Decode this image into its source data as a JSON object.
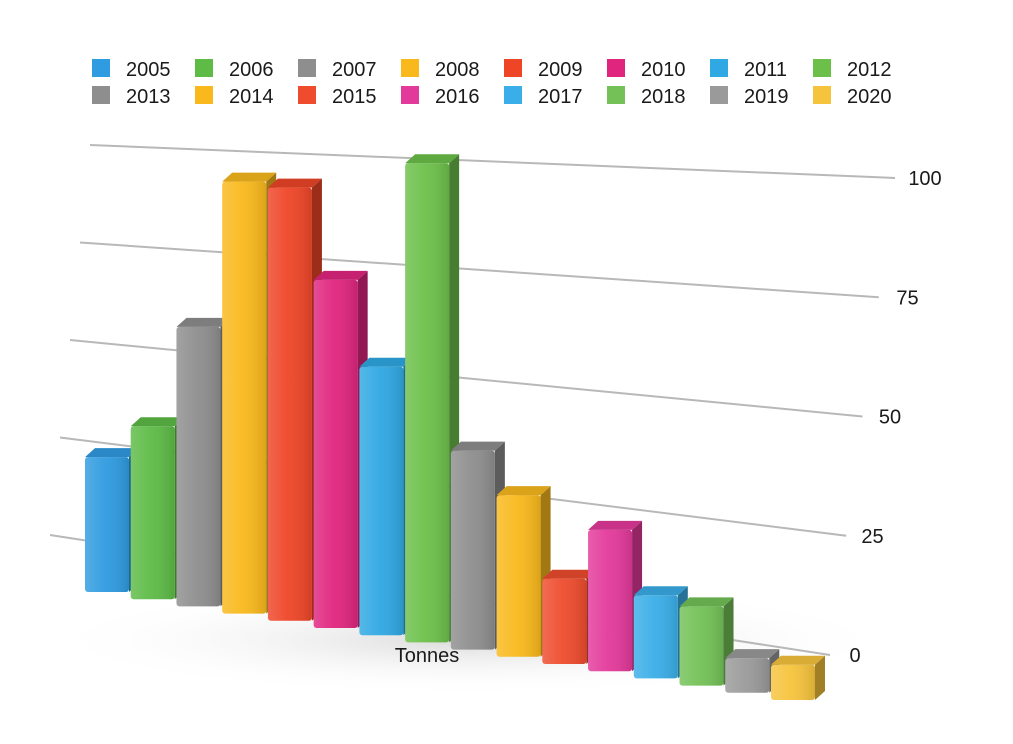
{
  "chart_data": {
    "type": "bar",
    "categories": [
      "2005",
      "2006",
      "2007",
      "2008",
      "2009",
      "2010",
      "2011",
      "2012",
      "2013",
      "2014",
      "2015",
      "2016",
      "2017",
      "2018",
      "2019",
      "2020"
    ],
    "values": [
      32,
      40,
      63,
      95,
      93,
      73,
      55,
      96,
      39,
      31,
      16,
      26,
      15,
      14,
      6,
      6
    ],
    "xlabel": "Tonnes",
    "ylabel": "",
    "ylim": [
      0,
      100
    ],
    "yticks": [
      0,
      25,
      50,
      75,
      100
    ],
    "grid": true,
    "legend": "top",
    "colors": [
      "#2f9be0",
      "#5dbb46",
      "#8e8e8e",
      "#f9b91c",
      "#ee4527",
      "#e0257f",
      "#2fa8e3",
      "#6cc04a",
      "#8e8e8e",
      "#f9b91c",
      "#ee4c2d",
      "#e3399a",
      "#3aaee8",
      "#73c157",
      "#9a9a9a",
      "#f6c33c"
    ]
  }
}
